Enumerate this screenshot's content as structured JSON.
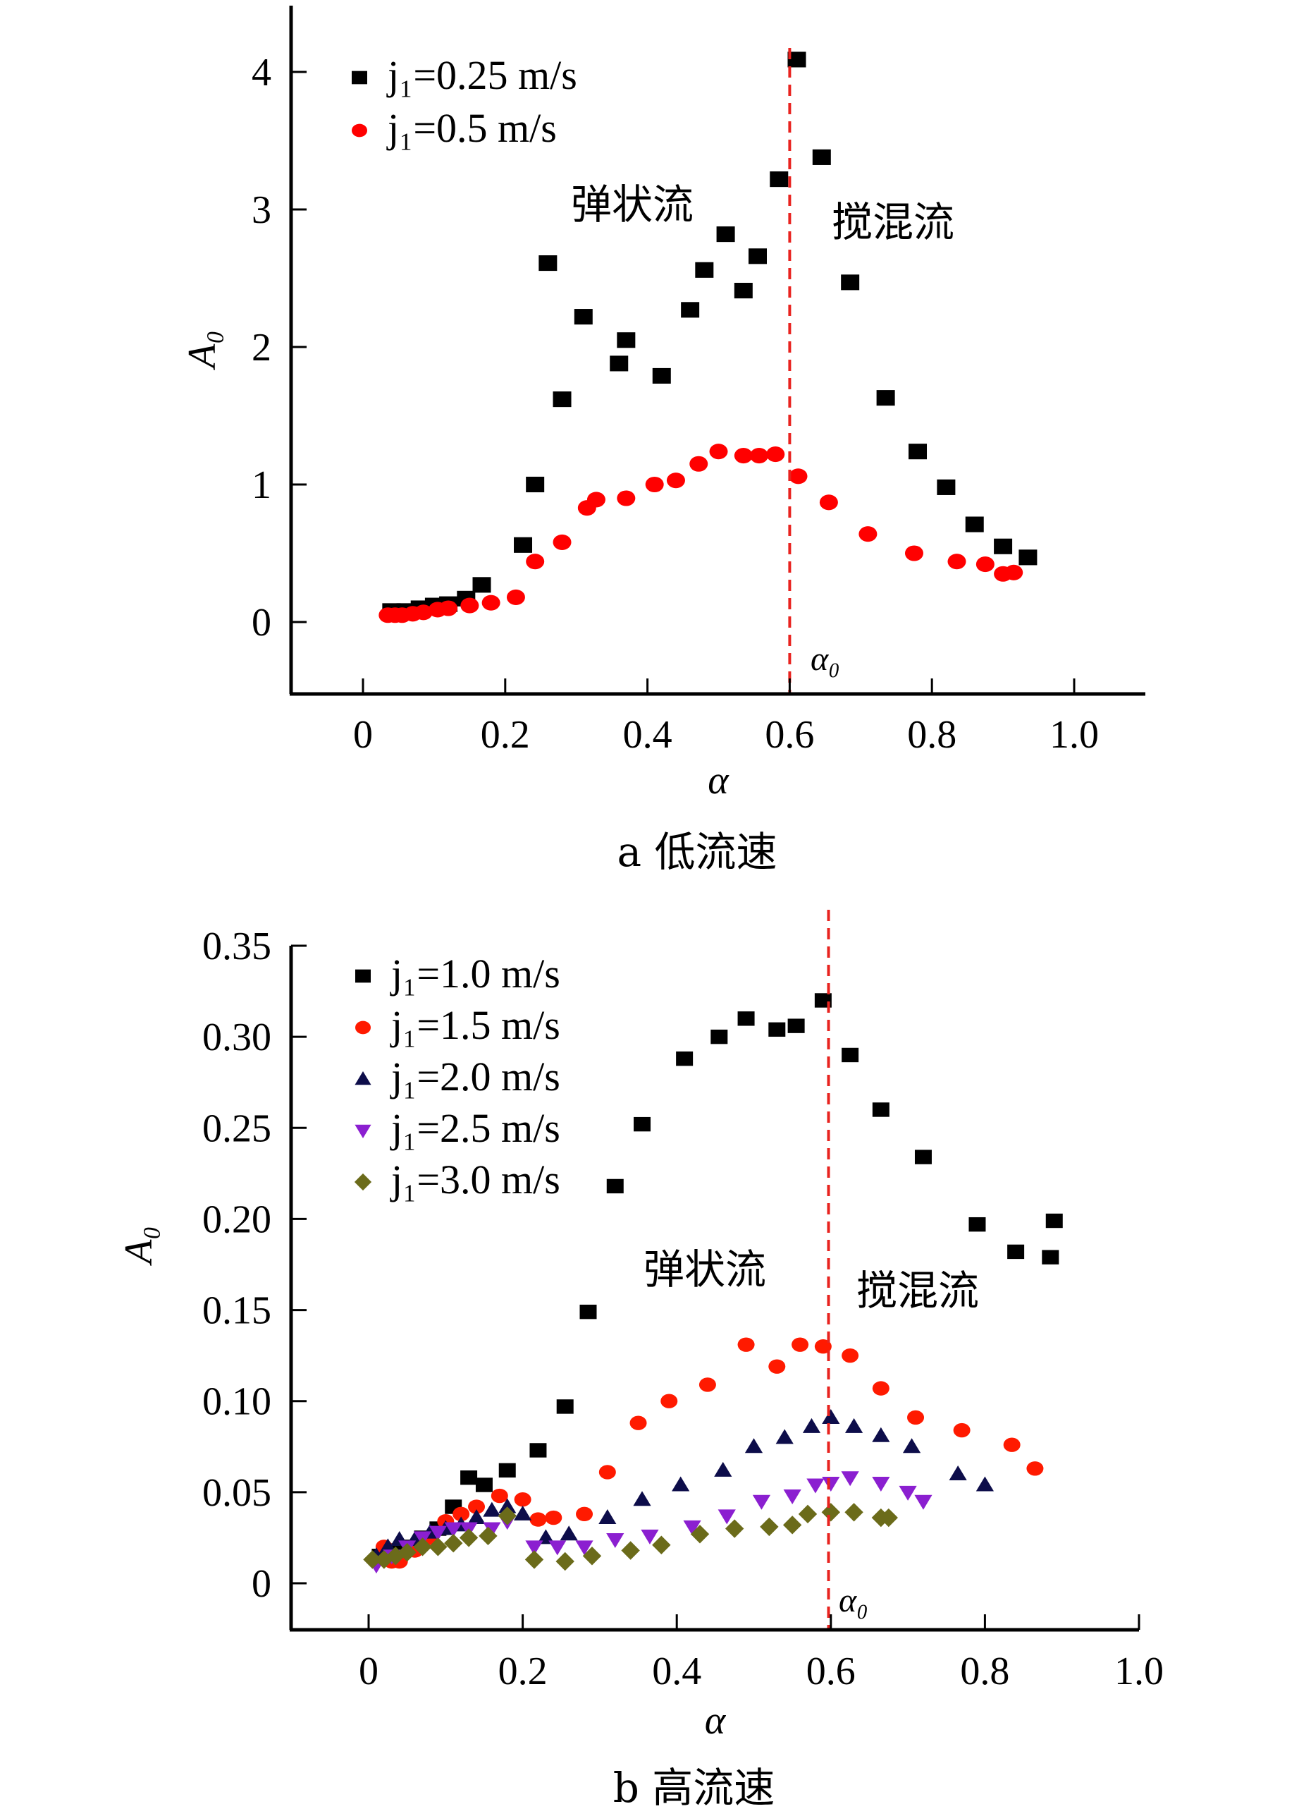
{
  "chart_data": [
    {
      "type": "scatter",
      "caption": "a  低流速",
      "xlabel": "α",
      "ylabel": "A₀",
      "xlim": [
        -0.1,
        1.1
      ],
      "ylim": [
        -0.52,
        4.5
      ],
      "xticks": [
        "0",
        "0.2",
        "0.4",
        "0.6",
        "0.8",
        "1.0"
      ],
      "xtick_values": [
        0,
        0.2,
        0.4,
        0.6,
        0.8,
        1.0
      ],
      "yticks": [
        "0",
        "1",
        "2",
        "3",
        "4"
      ],
      "ytick_values": [
        0,
        1,
        2,
        3,
        4
      ],
      "vline": {
        "x": 0.6,
        "label": "α₀",
        "color": "#e8231f"
      },
      "annotations": [
        {
          "text": "弹状流",
          "x": 0.39,
          "y": 2.95
        },
        {
          "text": "搅混流",
          "x": 0.76,
          "y": 2.82
        }
      ],
      "legend": "top-left",
      "series": [
        {
          "name": "j₁=0.25 m/s",
          "marker": "square",
          "color": "#000000",
          "x": [
            0.04,
            0.06,
            0.08,
            0.1,
            0.12,
            0.145,
            0.167,
            0.225,
            0.242,
            0.26,
            0.28,
            0.31,
            0.36,
            0.37,
            0.42,
            0.46,
            0.48,
            0.51,
            0.535,
            0.555,
            0.585,
            0.61,
            0.645,
            0.685,
            0.735,
            0.78,
            0.82,
            0.86,
            0.9,
            0.935
          ],
          "y": [
            0.08,
            0.08,
            0.1,
            0.12,
            0.13,
            0.17,
            0.27,
            0.56,
            1.0,
            2.61,
            1.62,
            2.22,
            1.88,
            2.05,
            1.79,
            2.27,
            2.56,
            2.82,
            2.41,
            2.66,
            3.22,
            4.09,
            3.38,
            2.47,
            1.63,
            1.24,
            0.98,
            0.71,
            0.55,
            0.47
          ]
        },
        {
          "name": "j₁=0.5 m/s",
          "marker": "circle",
          "color": "#ff0000",
          "x": [
            0.035,
            0.045,
            0.055,
            0.07,
            0.085,
            0.105,
            0.12,
            0.15,
            0.18,
            0.215,
            0.242,
            0.28,
            0.315,
            0.328,
            0.37,
            0.41,
            0.44,
            0.472,
            0.5,
            0.535,
            0.557,
            0.58,
            0.612,
            0.655,
            0.71,
            0.775,
            0.835,
            0.875,
            0.9,
            0.915
          ],
          "y": [
            0.05,
            0.05,
            0.05,
            0.06,
            0.07,
            0.09,
            0.1,
            0.12,
            0.14,
            0.18,
            0.44,
            0.58,
            0.83,
            0.89,
            0.9,
            1.0,
            1.03,
            1.15,
            1.24,
            1.21,
            1.21,
            1.22,
            1.06,
            0.87,
            0.64,
            0.5,
            0.44,
            0.42,
            0.35,
            0.36
          ]
        }
      ]
    },
    {
      "type": "scatter",
      "caption": "b  高流速",
      "xlabel": "α",
      "ylabel": "A₀",
      "xlim": [
        -0.1,
        1.0
      ],
      "ylim": [
        -0.025,
        0.35
      ],
      "xticks": [
        "0",
        "0.2",
        "0.4",
        "0.6",
        "0.8",
        "1.0"
      ],
      "xtick_values": [
        0,
        0.2,
        0.4,
        0.6,
        0.8,
        1.0
      ],
      "yticks": [
        "0",
        "0.05",
        "0.10",
        "0.15",
        "0.20",
        "0.25",
        "0.30",
        "0.35"
      ],
      "ytick_values": [
        0,
        0.05,
        0.1,
        0.15,
        0.2,
        0.25,
        0.3,
        0.35
      ],
      "vline": {
        "x": 0.597,
        "label": "α₀",
        "color": "#e8231f"
      },
      "annotations": [
        {
          "text": "弹状流",
          "x": 0.45,
          "y": 0.163
        },
        {
          "text": "搅混流",
          "x": 0.63,
          "y": 0.149
        }
      ],
      "legend": "top-left",
      "series": [
        {
          "name": "j₁=1.0 m/s",
          "marker": "square",
          "color": "#000000",
          "x": [
            0.015,
            0.03,
            0.05,
            0.07,
            0.09,
            0.11,
            0.13,
            0.15,
            0.18,
            0.22,
            0.255,
            0.285,
            0.32,
            0.355,
            0.41,
            0.455,
            0.49,
            0.53,
            0.555,
            0.59,
            0.625,
            0.665,
            0.72,
            0.79,
            0.84,
            0.885,
            0.89
          ],
          "y": [
            0.015,
            0.018,
            0.02,
            0.025,
            0.03,
            0.042,
            0.058,
            0.054,
            0.062,
            0.073,
            0.097,
            0.149,
            0.218,
            0.252,
            0.288,
            0.3,
            0.31,
            0.304,
            0.306,
            0.32,
            0.29,
            0.26,
            0.234,
            0.197,
            0.182,
            0.179,
            0.199
          ]
        },
        {
          "name": "j₁=1.5 m/s",
          "marker": "circle",
          "color": "#ff1a00",
          "x": [
            0.02,
            0.03,
            0.04,
            0.06,
            0.08,
            0.1,
            0.12,
            0.14,
            0.17,
            0.2,
            0.22,
            0.24,
            0.28,
            0.31,
            0.35,
            0.39,
            0.44,
            0.49,
            0.53,
            0.56,
            0.59,
            0.625,
            0.665,
            0.71,
            0.77,
            0.835,
            0.865
          ],
          "y": [
            0.02,
            0.012,
            0.012,
            0.018,
            0.025,
            0.034,
            0.038,
            0.042,
            0.048,
            0.046,
            0.035,
            0.036,
            0.038,
            0.061,
            0.088,
            0.1,
            0.109,
            0.131,
            0.119,
            0.131,
            0.13,
            0.125,
            0.107,
            0.091,
            0.084,
            0.076,
            0.063
          ]
        },
        {
          "name": "j₁=2.0 m/s",
          "marker": "triangle-up",
          "color": "#0d0d4a",
          "x": [
            0.01,
            0.025,
            0.04,
            0.06,
            0.08,
            0.1,
            0.12,
            0.14,
            0.16,
            0.18,
            0.2,
            0.23,
            0.26,
            0.31,
            0.355,
            0.405,
            0.46,
            0.5,
            0.54,
            0.575,
            0.6,
            0.63,
            0.665,
            0.705,
            0.765,
            0.8
          ],
          "y": [
            0.015,
            0.02,
            0.024,
            0.024,
            0.028,
            0.03,
            0.032,
            0.036,
            0.04,
            0.042,
            0.038,
            0.025,
            0.027,
            0.036,
            0.046,
            0.054,
            0.062,
            0.075,
            0.08,
            0.086,
            0.091,
            0.086,
            0.081,
            0.075,
            0.06,
            0.054
          ]
        },
        {
          "name": "j₁=2.5 m/s",
          "marker": "triangle-down",
          "color": "#8b1fd0",
          "x": [
            0.01,
            0.03,
            0.05,
            0.07,
            0.09,
            0.11,
            0.13,
            0.16,
            0.18,
            0.215,
            0.245,
            0.28,
            0.32,
            0.365,
            0.42,
            0.465,
            0.51,
            0.55,
            0.58,
            0.6,
            0.625,
            0.665,
            0.7,
            0.72
          ],
          "y": [
            0.01,
            0.015,
            0.02,
            0.025,
            0.028,
            0.03,
            0.03,
            0.03,
            0.034,
            0.02,
            0.02,
            0.02,
            0.024,
            0.026,
            0.031,
            0.037,
            0.045,
            0.048,
            0.054,
            0.055,
            0.058,
            0.055,
            0.05,
            0.045
          ]
        },
        {
          "name": "j₁=3.0 m/s",
          "marker": "diamond",
          "color": "#6b6b1a",
          "x": [
            0.005,
            0.02,
            0.035,
            0.05,
            0.07,
            0.09,
            0.11,
            0.13,
            0.155,
            0.18,
            0.215,
            0.255,
            0.29,
            0.34,
            0.38,
            0.43,
            0.475,
            0.52,
            0.55,
            0.57,
            0.6,
            0.63,
            0.665,
            0.675
          ],
          "y": [
            0.013,
            0.013,
            0.015,
            0.017,
            0.02,
            0.02,
            0.022,
            0.025,
            0.026,
            0.037,
            0.013,
            0.012,
            0.015,
            0.018,
            0.021,
            0.027,
            0.03,
            0.031,
            0.032,
            0.038,
            0.039,
            0.039,
            0.036,
            0.036
          ]
        }
      ]
    }
  ]
}
